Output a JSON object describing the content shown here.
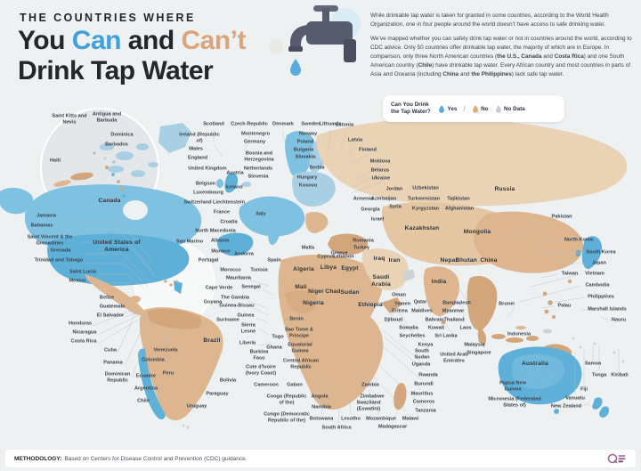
{
  "header": {
    "kicker": "THE COUNTRIES WHERE",
    "title": {
      "part1": "You ",
      "part2": "Can",
      "part3": " and ",
      "part4": "Can’t",
      "line2": "Drink Tap Water"
    },
    "intro_p1": "While drinkable tap water is taken for granted in some countries, according to the World Health Organization, one in four people around the world doesn’t have access to safe drinking water.",
    "intro_p2": [
      {
        "t": "We’ve mapped whether you can safely drink tap water or not in countries around the world, according to CDC advice. Only 50 countries offer drinkable tap water, the majority of which are in Europe. In comparison, only three North American countries ("
      },
      {
        "t": "the U.S., Canada",
        "b": 1
      },
      {
        "t": " and "
      },
      {
        "t": "Costa Rica",
        "b": 1
      },
      {
        "t": ") and one South American country ("
      },
      {
        "t": "Chile",
        "b": 1
      },
      {
        "t": ") have drinkable tap water. Every African country and most countries in parts of Asia and Oceania (including "
      },
      {
        "t": "China",
        "b": 1
      },
      {
        "t": " and "
      },
      {
        "t": "the Philippines",
        "b": 1
      },
      {
        "t": ") lack safe tap water."
      }
    ]
  },
  "legend": {
    "question": "Can You Drink the Tap Water?",
    "separator": "/",
    "items": [
      {
        "label": "Yes",
        "color_key": "yes"
      },
      {
        "label": "No",
        "color_key": "no"
      },
      {
        "label": "No Data",
        "color_key": "no_data"
      }
    ]
  },
  "footer": {
    "methodology_label": "METHODOLOGY:",
    "methodology_text": "Based on Centers for Disease Control and Prevention (CDC) guidance."
  },
  "colors": {
    "ink": "#23262b",
    "accent_blue": "#419fd9",
    "accent_tan": "#dba47c",
    "yes": "#58ace0",
    "no": "#dfaa7b",
    "no_data": "#c7cdd1",
    "map_blue": "#7fc1e1",
    "map_blue_dark": "#5fb0d8",
    "map_blue_light": "#a8cfe4",
    "map_tan": "#ddb690",
    "map_tan_dark": "#d3a57a",
    "map_beige": "#ead2b4",
    "map_gray": "#cdd2d5",
    "line": "#b8bec3"
  },
  "map": {
    "labels": [
      [
        "Saint Kitts and Nevis",
        78,
        134,
        44,
        ""
      ],
      [
        "Antigua and Barbuda",
        120,
        132,
        42,
        ""
      ],
      [
        "Dominica",
        137,
        152,
        0,
        ""
      ],
      [
        "Barbados",
        131,
        163,
        0,
        ""
      ],
      [
        "Haiti",
        62,
        181,
        0,
        ""
      ],
      [
        "Canada",
        123,
        226,
        0,
        "m"
      ],
      [
        "Jamaica",
        52,
        243,
        0,
        ""
      ],
      [
        "Bahamas",
        47,
        254,
        0,
        ""
      ],
      [
        "Saint Vincent & the Grenadines",
        56,
        270,
        60,
        ""
      ],
      [
        "Grenada",
        68,
        282,
        0,
        ""
      ],
      [
        "Trinidad and Tobago",
        66,
        293,
        0,
        ""
      ],
      [
        "Saint Lucia",
        93,
        306,
        0,
        ""
      ],
      [
        "Mexico",
        87,
        316,
        0,
        ""
      ],
      [
        "United States of America",
        131,
        277,
        54,
        "m"
      ],
      [
        "Belize",
        120,
        335,
        0,
        ""
      ],
      [
        "Guatemala",
        126,
        345,
        0,
        ""
      ],
      [
        "El Salvador",
        124,
        355,
        0,
        ""
      ],
      [
        "Honduras",
        90,
        364,
        0,
        ""
      ],
      [
        "Nicaragua",
        95,
        374,
        0,
        ""
      ],
      [
        "Costa Rica",
        94,
        384,
        0,
        ""
      ],
      [
        "Cuba",
        124,
        394,
        0,
        ""
      ],
      [
        "Panama",
        127,
        408,
        0,
        ""
      ],
      [
        "Dominican Republic",
        132,
        424,
        48,
        ""
      ],
      [
        "Ecuador",
        164,
        423,
        0,
        ""
      ],
      [
        "Argentina",
        164,
        437,
        0,
        ""
      ],
      [
        "Chile",
        161,
        451,
        0,
        ""
      ],
      [
        "Venezuela",
        186,
        394,
        0,
        ""
      ],
      [
        "Colombia",
        172,
        405,
        0,
        ""
      ],
      [
        "Peru",
        189,
        420,
        0,
        ""
      ],
      [
        "Bolivia",
        256,
        428,
        0,
        ""
      ],
      [
        "Paraguay",
        244,
        443,
        0,
        ""
      ],
      [
        "Uruguay",
        221,
        457,
        0,
        ""
      ],
      [
        "Brazil",
        238,
        383,
        0,
        "m"
      ],
      [
        "Guyana",
        239,
        340,
        0,
        ""
      ],
      [
        "Suriname",
        256,
        360,
        0,
        ""
      ],
      [
        "Cape Verde",
        246,
        324,
        0,
        ""
      ],
      [
        "Scotland",
        240,
        140,
        0,
        ""
      ],
      [
        "Czech Republic",
        280,
        140,
        0,
        ""
      ],
      [
        "Denmark",
        318,
        140,
        0,
        ""
      ],
      [
        "Sweden",
        349,
        140,
        0,
        ""
      ],
      [
        "Lithuania",
        371,
        140,
        0,
        ""
      ],
      [
        "Estonia",
        387,
        141,
        0,
        ""
      ],
      [
        "Latvia",
        399,
        158,
        0,
        ""
      ],
      [
        "Finland",
        413,
        169,
        0,
        ""
      ],
      [
        "Moldova",
        427,
        182,
        0,
        ""
      ],
      [
        "Belarus",
        427,
        192,
        0,
        ""
      ],
      [
        "Ukraine",
        428,
        201,
        0,
        ""
      ],
      [
        "Ireland (Republic of)",
        224,
        155,
        46,
        ""
      ],
      [
        "Wales",
        220,
        168,
        0,
        ""
      ],
      [
        "England",
        222,
        178,
        0,
        ""
      ],
      [
        "United Kingdom",
        233,
        190,
        44,
        ""
      ],
      [
        "Belgium",
        231,
        207,
        0,
        ""
      ],
      [
        "Luxembourg",
        234,
        217,
        0,
        ""
      ],
      [
        "Switzerland",
        222,
        228,
        0,
        ""
      ],
      [
        "Liechtenstein",
        257,
        228,
        0,
        ""
      ],
      [
        "France",
        249,
        239,
        0,
        ""
      ],
      [
        "Italy",
        293,
        241,
        0,
        ""
      ],
      [
        "Croatia",
        257,
        250,
        0,
        ""
      ],
      [
        "North Macedonia",
        242,
        260,
        0,
        ""
      ],
      [
        "San Marino",
        213,
        272,
        0,
        ""
      ],
      [
        "Albania",
        247,
        271,
        0,
        ""
      ],
      [
        "Monaco",
        248,
        283,
        0,
        ""
      ],
      [
        "Andorra",
        274,
        286,
        0,
        ""
      ],
      [
        "Portugal",
        234,
        293,
        0,
        ""
      ],
      [
        "Spain",
        308,
        293,
        0,
        ""
      ],
      [
        "Montenegro",
        287,
        151,
        0,
        ""
      ],
      [
        "Germany",
        286,
        160,
        0,
        ""
      ],
      [
        "Bosnia and Herzegovina",
        291,
        176,
        52,
        ""
      ],
      [
        "Netherlands",
        290,
        190,
        0,
        ""
      ],
      [
        "Austria",
        264,
        195,
        0,
        ""
      ],
      [
        "Slovenia",
        290,
        199,
        0,
        ""
      ],
      [
        "Iceland",
        263,
        211,
        0,
        ""
      ],
      [
        "Norway",
        346,
        151,
        0,
        ""
      ],
      [
        "Poland",
        343,
        160,
        0,
        ""
      ],
      [
        "Bulgaria",
        341,
        169,
        0,
        ""
      ],
      [
        "Slovakia",
        343,
        177,
        0,
        ""
      ],
      [
        "Serbia",
        356,
        189,
        0,
        ""
      ],
      [
        "Hungary",
        345,
        200,
        0,
        ""
      ],
      [
        "Kosovo",
        346,
        209,
        0,
        ""
      ],
      [
        "Malta",
        346,
        279,
        0,
        ""
      ],
      [
        "Greece",
        381,
        285,
        0,
        ""
      ],
      [
        "Cyprus",
        366,
        289,
        0,
        ""
      ],
      [
        "Lebanon",
        386,
        289,
        0,
        ""
      ],
      [
        "Turkey",
        406,
        279,
        0,
        ""
      ],
      [
        "Romania",
        408,
        271,
        0,
        ""
      ],
      [
        "Armenia",
        408,
        224,
        0,
        ""
      ],
      [
        "Azerbaijan",
        431,
        224,
        0,
        ""
      ],
      [
        "Georgia",
        416,
        236,
        0,
        ""
      ],
      [
        "Syria",
        444,
        233,
        0,
        ""
      ],
      [
        "Israel",
        424,
        247,
        0,
        ""
      ],
      [
        "Jordan",
        443,
        213,
        0,
        ""
      ],
      [
        "Iraq",
        426,
        291,
        0,
        "m"
      ],
      [
        "Iran",
        443,
        293,
        0,
        "m"
      ],
      [
        "Saudi Arabia",
        428,
        316,
        36,
        "m"
      ],
      [
        "Kuwait",
        490,
        369,
        0,
        ""
      ],
      [
        "Bahrain",
        488,
        360,
        0,
        ""
      ],
      [
        "Qatar",
        472,
        340,
        0,
        ""
      ],
      [
        "Maldives",
        474,
        350,
        0,
        ""
      ],
      [
        "Oman",
        448,
        332,
        0,
        ""
      ],
      [
        "Yemen",
        452,
        342,
        0,
        ""
      ],
      [
        "Eritrea",
        449,
        350,
        0,
        ""
      ],
      [
        "Djibouti",
        442,
        360,
        0,
        ""
      ],
      [
        "Somalia",
        459,
        369,
        0,
        ""
      ],
      [
        "Seychelles",
        463,
        378,
        0,
        ""
      ],
      [
        "Kenya",
        478,
        388,
        0,
        ""
      ],
      [
        "South Sudan",
        474,
        398,
        34,
        ""
      ],
      [
        "United Arab Emirates",
        510,
        402,
        38,
        ""
      ],
      [
        "Uzbekistan",
        478,
        212,
        0,
        ""
      ],
      [
        "Turkmenistan",
        476,
        224,
        0,
        ""
      ],
      [
        "Tajikistan",
        515,
        224,
        0,
        ""
      ],
      [
        "Kyrgyzstan",
        478,
        235,
        0,
        ""
      ],
      [
        "Afghanistan",
        516,
        235,
        0,
        ""
      ],
      [
        "Kazakhstan",
        474,
        257,
        0,
        "m"
      ],
      [
        "Mongolia",
        536,
        261,
        0,
        "m"
      ],
      [
        "Russia",
        567,
        213,
        0,
        "m"
      ],
      [
        "Nepal",
        504,
        293,
        0,
        "m"
      ],
      [
        "Bhutan",
        524,
        293,
        0,
        "m"
      ],
      [
        "China",
        549,
        293,
        0,
        "m"
      ],
      [
        "India",
        493,
        317,
        0,
        "m"
      ],
      [
        "Pakistan",
        631,
        244,
        0,
        ""
      ],
      [
        "Bangladesh",
        513,
        341,
        0,
        ""
      ],
      [
        "Myanmar",
        509,
        350,
        0,
        ""
      ],
      [
        "Thailand",
        510,
        360,
        0,
        ""
      ],
      [
        "Laos",
        523,
        369,
        0,
        ""
      ],
      [
        "Sri Lanka",
        501,
        378,
        0,
        ""
      ],
      [
        "Malaysia",
        533,
        388,
        0,
        ""
      ],
      [
        "Singapore",
        538,
        397,
        0,
        ""
      ],
      [
        "Brunei",
        569,
        342,
        0,
        ""
      ],
      [
        "Indonesia",
        583,
        376,
        0,
        ""
      ],
      [
        "North Korea",
        650,
        270,
        0,
        ""
      ],
      [
        "South Korea",
        675,
        284,
        0,
        ""
      ],
      [
        "Japan",
        673,
        296,
        0,
        ""
      ],
      [
        "Taiwan",
        640,
        308,
        0,
        ""
      ],
      [
        "Vietnam",
        668,
        308,
        0,
        ""
      ],
      [
        "Cambodia",
        671,
        321,
        0,
        ""
      ],
      [
        "Philippines",
        675,
        334,
        0,
        ""
      ],
      [
        "Palau",
        634,
        344,
        0,
        ""
      ],
      [
        "Marshall Islands",
        682,
        348,
        0,
        ""
      ],
      [
        "Nauru",
        695,
        360,
        0,
        ""
      ],
      [
        "Morocco",
        259,
        304,
        0,
        ""
      ],
      [
        "Tunisia",
        291,
        304,
        0,
        ""
      ],
      [
        "Algeria",
        341,
        303,
        0,
        "m"
      ],
      [
        "Libya",
        369,
        301,
        0,
        "m"
      ],
      [
        "Egypt",
        393,
        302,
        0,
        "m"
      ],
      [
        "Mauritania",
        268,
        313,
        0,
        ""
      ],
      [
        "Senegal",
        282,
        323,
        0,
        ""
      ],
      [
        "Mali",
        338,
        323,
        0,
        "m"
      ],
      [
        "Niger",
        355,
        328,
        0,
        "m"
      ],
      [
        "Chad",
        374,
        328,
        0,
        "m"
      ],
      [
        "Sudan",
        393,
        329,
        0,
        "m"
      ],
      [
        "The Gambia",
        264,
        335,
        0,
        ""
      ],
      [
        "Guinea-Bissau",
        266,
        344,
        0,
        ""
      ],
      [
        "Guinea",
        276,
        355,
        0,
        ""
      ],
      [
        "Sierra Leone",
        279,
        369,
        32,
        ""
      ],
      [
        "Liberia",
        278,
        386,
        0,
        ""
      ],
      [
        "Nigeria",
        352,
        341,
        0,
        "m"
      ],
      [
        "Ethiopia",
        416,
        343,
        0,
        "m"
      ],
      [
        "Benin",
        333,
        359,
        0,
        ""
      ],
      [
        "Togo",
        312,
        379,
        0,
        ""
      ],
      [
        "Sao Tome & Principe",
        336,
        374,
        36,
        ""
      ],
      [
        "Ghana",
        308,
        391,
        0,
        ""
      ],
      [
        "Equatorial Guinea",
        337,
        391,
        40,
        ""
      ],
      [
        "Burkina Faso",
        291,
        399,
        34,
        ""
      ],
      [
        "Cote d'Ivoire (Ivory Coast)",
        293,
        416,
        50,
        ""
      ],
      [
        "Cameroon",
        299,
        433,
        0,
        ""
      ],
      [
        "Gabon",
        331,
        433,
        0,
        ""
      ],
      [
        "Central African Republic",
        338,
        409,
        40,
        ""
      ],
      [
        "Congo (Republic of the)",
        322,
        449,
        46,
        ""
      ],
      [
        "Congo (Democratic Republic of the)",
        322,
        469,
        52,
        ""
      ],
      [
        "Angola",
        359,
        446,
        0,
        ""
      ],
      [
        "Namibia",
        361,
        458,
        0,
        ""
      ],
      [
        "Botswana",
        361,
        471,
        0,
        ""
      ],
      [
        "South Africa",
        378,
        481,
        0,
        ""
      ],
      [
        "Lesotho",
        394,
        471,
        0,
        ""
      ],
      [
        "Zambia",
        416,
        433,
        0,
        ""
      ],
      [
        "Zimbabwe",
        418,
        446,
        0,
        ""
      ],
      [
        "Swaziland (Eswatini)",
        414,
        456,
        42,
        ""
      ],
      [
        "Mozambique",
        428,
        471,
        0,
        ""
      ],
      [
        "Madagascar",
        441,
        480,
        0,
        ""
      ],
      [
        "Malawi",
        461,
        471,
        0,
        ""
      ],
      [
        "Mauritius",
        474,
        443,
        0,
        ""
      ],
      [
        "Comoros",
        476,
        452,
        0,
        ""
      ],
      [
        "Tanzania",
        478,
        462,
        0,
        ""
      ],
      [
        "Burundi",
        476,
        432,
        0,
        ""
      ],
      [
        "Rwanda",
        481,
        422,
        0,
        ""
      ],
      [
        "Uganda",
        473,
        410,
        0,
        ""
      ],
      [
        "Australia",
        601,
        409,
        0,
        "m"
      ],
      [
        "Samoa",
        666,
        409,
        0,
        ""
      ],
      [
        "Tonga",
        673,
        422,
        0,
        ""
      ],
      [
        "Kiribati",
        696,
        422,
        0,
        ""
      ],
      [
        "Fiji",
        656,
        438,
        0,
        ""
      ],
      [
        "Vanuatu",
        646,
        448,
        0,
        ""
      ],
      [
        "New Zealand",
        636,
        457,
        0,
        ""
      ],
      [
        "Papua New Guinea",
        576,
        434,
        46,
        ""
      ],
      [
        "Micronesia (Federated States of)",
        578,
        452,
        60,
        ""
      ]
    ]
  }
}
